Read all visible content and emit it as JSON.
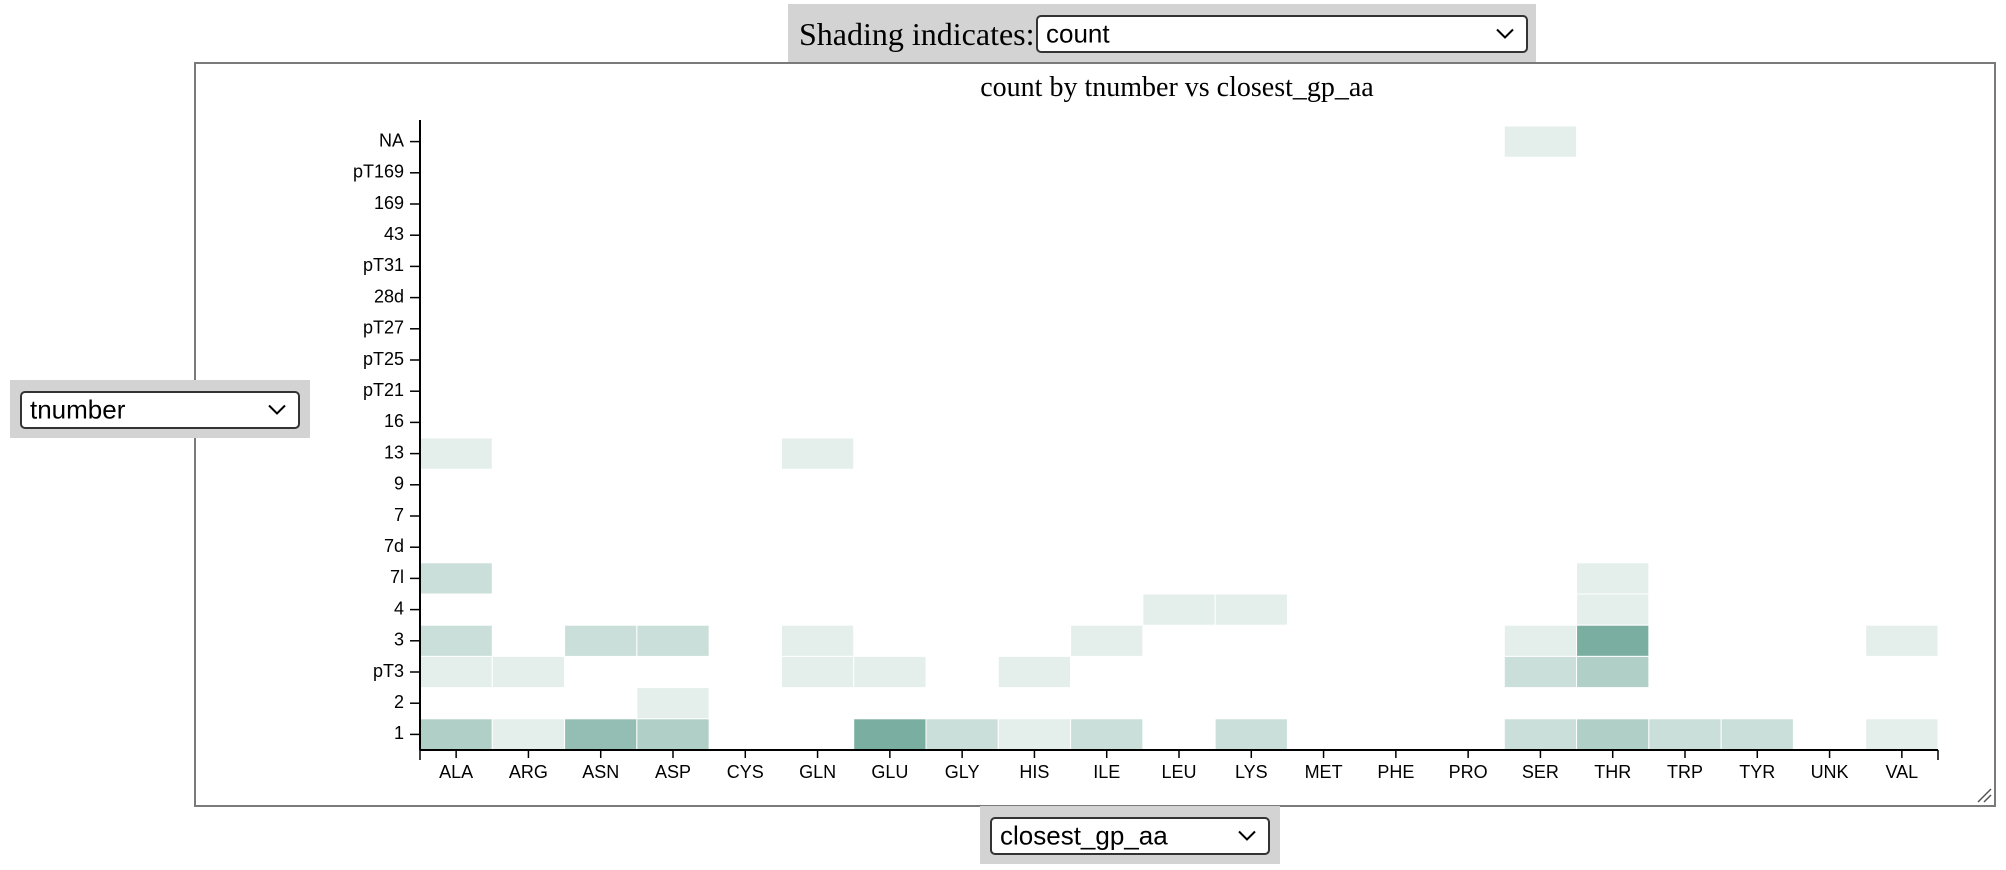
{
  "controls": {
    "shading_label": "Shading indicates:",
    "shading_value": "count",
    "y_select_value": "tnumber",
    "x_select_value": "closest_gp_aa"
  },
  "colors": {
    "max_shade": "#5f9e8e",
    "frame_border": "#7a7a7a",
    "control_bg": "#d3d3d3"
  },
  "chart_data": {
    "type": "heatmap",
    "title": "count by tnumber vs closest_gp_aa",
    "x_categories": [
      "ALA",
      "ARG",
      "ASN",
      "ASP",
      "CYS",
      "GLN",
      "GLU",
      "GLY",
      "HIS",
      "ILE",
      "LEU",
      "LYS",
      "MET",
      "PHE",
      "PRO",
      "SER",
      "THR",
      "TRP",
      "TYR",
      "UNK",
      "VAL"
    ],
    "y_categories": [
      "NA",
      "pT169",
      "169",
      "43",
      "pT31",
      "28d",
      "pT27",
      "pT25",
      "pT21",
      "16",
      "13",
      "9",
      "7",
      "7d",
      "7l",
      "4",
      "3",
      "pT3",
      "2",
      "1"
    ],
    "value_range": [
      0,
      6
    ],
    "cells": [
      {
        "x": "SER",
        "y": "NA",
        "v": 1
      },
      {
        "x": "ALA",
        "y": "13",
        "v": 1
      },
      {
        "x": "GLN",
        "y": "13",
        "v": 1
      },
      {
        "x": "ALA",
        "y": "7l",
        "v": 2
      },
      {
        "x": "THR",
        "y": "7l",
        "v": 1
      },
      {
        "x": "LEU",
        "y": "4",
        "v": 1
      },
      {
        "x": "LYS",
        "y": "4",
        "v": 1
      },
      {
        "x": "THR",
        "y": "4",
        "v": 1
      },
      {
        "x": "ALA",
        "y": "3",
        "v": 2
      },
      {
        "x": "ASN",
        "y": "3",
        "v": 2
      },
      {
        "x": "ASP",
        "y": "3",
        "v": 2
      },
      {
        "x": "GLN",
        "y": "3",
        "v": 1
      },
      {
        "x": "ILE",
        "y": "3",
        "v": 1
      },
      {
        "x": "SER",
        "y": "3",
        "v": 1
      },
      {
        "x": "THR",
        "y": "3",
        "v": 5
      },
      {
        "x": "VAL",
        "y": "3",
        "v": 1
      },
      {
        "x": "ALA",
        "y": "pT3",
        "v": 1
      },
      {
        "x": "ARG",
        "y": "pT3",
        "v": 1
      },
      {
        "x": "GLN",
        "y": "pT3",
        "v": 1
      },
      {
        "x": "GLU",
        "y": "pT3",
        "v": 1
      },
      {
        "x": "HIS",
        "y": "pT3",
        "v": 1
      },
      {
        "x": "SER",
        "y": "pT3",
        "v": 2
      },
      {
        "x": "THR",
        "y": "pT3",
        "v": 3
      },
      {
        "x": "ASP",
        "y": "2",
        "v": 1
      },
      {
        "x": "ALA",
        "y": "1",
        "v": 3
      },
      {
        "x": "ARG",
        "y": "1",
        "v": 1
      },
      {
        "x": "ASN",
        "y": "1",
        "v": 4
      },
      {
        "x": "ASP",
        "y": "1",
        "v": 3
      },
      {
        "x": "GLU",
        "y": "1",
        "v": 5
      },
      {
        "x": "GLY",
        "y": "1",
        "v": 2
      },
      {
        "x": "HIS",
        "y": "1",
        "v": 1
      },
      {
        "x": "ILE",
        "y": "1",
        "v": 2
      },
      {
        "x": "LYS",
        "y": "1",
        "v": 2
      },
      {
        "x": "SER",
        "y": "1",
        "v": 2
      },
      {
        "x": "THR",
        "y": "1",
        "v": 3
      },
      {
        "x": "TRP",
        "y": "1",
        "v": 2
      },
      {
        "x": "TYR",
        "y": "1",
        "v": 2
      },
      {
        "x": "VAL",
        "y": "1",
        "v": 1
      }
    ]
  }
}
